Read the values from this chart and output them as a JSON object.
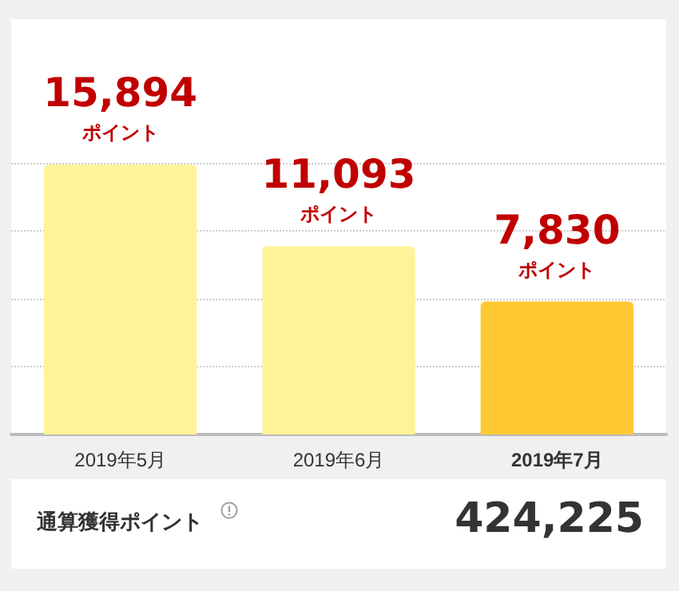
{
  "chart_data": {
    "type": "bar",
    "categories": [
      "2019年5月",
      "2019年6月",
      "2019年7月"
    ],
    "values": [
      15894,
      11093,
      7830
    ],
    "colors": [
      "#fff399",
      "#fff399",
      "#ffc933"
    ],
    "value_labels": [
      "15,894\nポイント",
      "11,093\nポイント",
      "7,830\nポイント"
    ],
    "ylim": [
      0,
      16000
    ],
    "yticks": [
      0,
      4000,
      8000,
      12000,
      16000
    ],
    "grid": "y",
    "tick_labels": "x",
    "annotations": [
      "通算獲得ポイント",
      "424,225"
    ]
  }
}
